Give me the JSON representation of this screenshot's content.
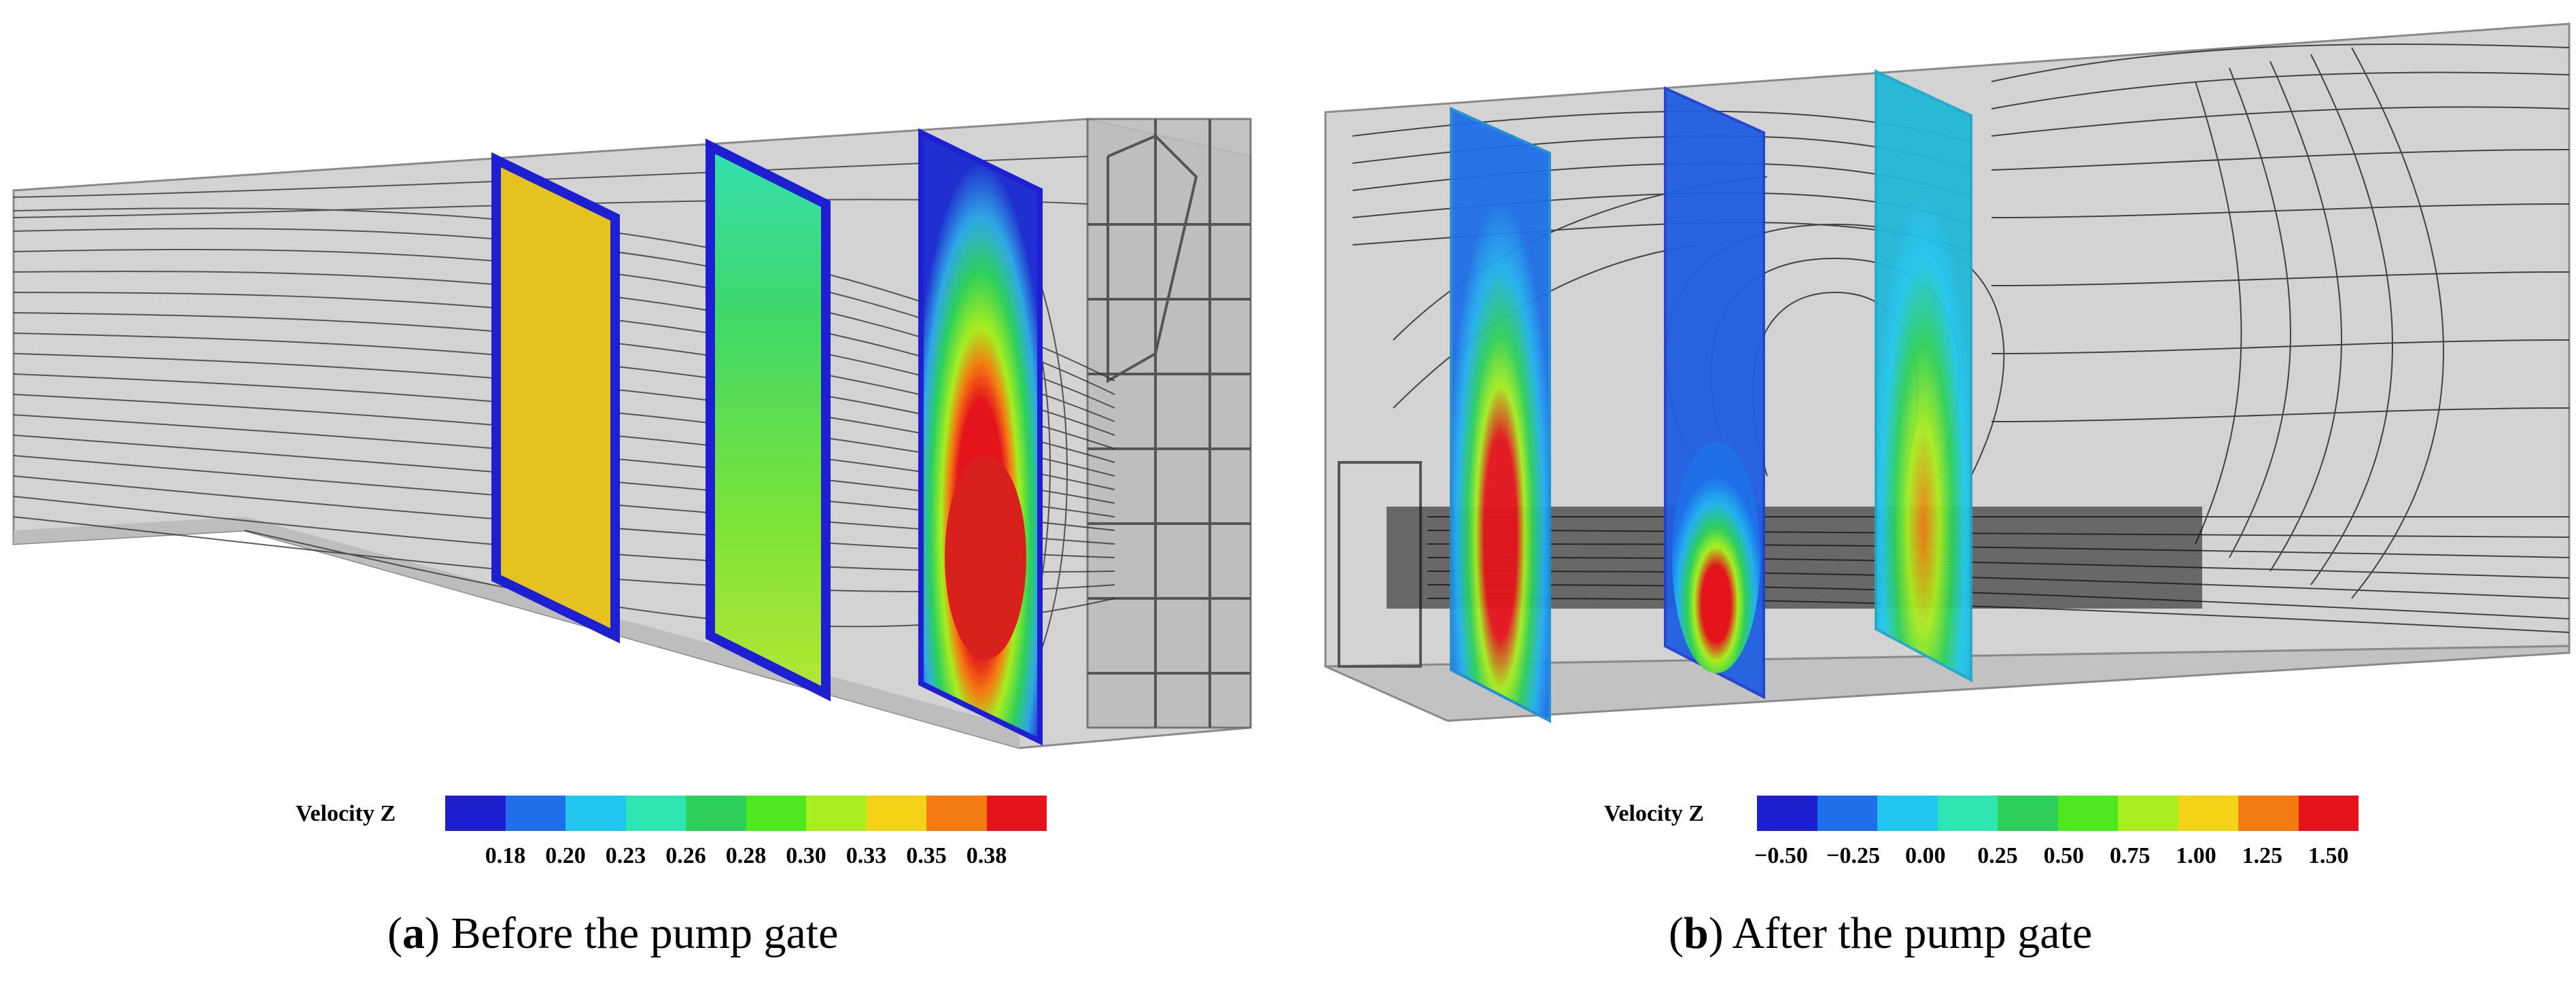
{
  "colormap": [
    "#1f1fd2",
    "#1f6fe8",
    "#22c7ef",
    "#2fe6b0",
    "#2ed05a",
    "#4fe81f",
    "#a8ee1f",
    "#f4d218",
    "#f47a12",
    "#e4141c"
  ],
  "panel_a": {
    "legend_title": "Velocity Z",
    "ticks": [
      "0.18",
      "0.20",
      "0.23",
      "0.26",
      "0.28",
      "0.30",
      "0.33",
      "0.35",
      "0.38"
    ],
    "caption_letter": "a",
    "caption_text": "Before the pump gate"
  },
  "panel_b": {
    "legend_title": "Velocity Z",
    "ticks": [
      "−0.50",
      "−0.25",
      "0.00",
      "0.25",
      "0.50",
      "0.75",
      "1.00",
      "1.25",
      "1.50"
    ],
    "caption_letter": "b",
    "caption_text": "After the pump gate"
  }
}
